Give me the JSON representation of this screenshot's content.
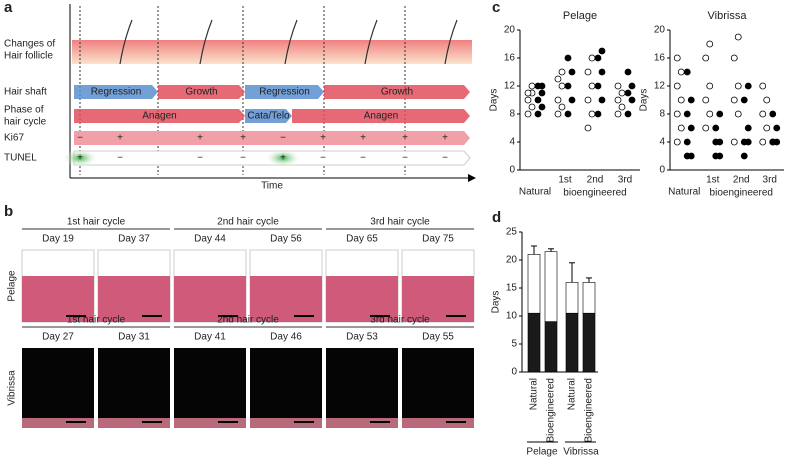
{
  "panels": {
    "a": {
      "letter": "a",
      "rows": [
        {
          "lines": [
            "Changes of",
            "Hair follicle"
          ]
        },
        {
          "lines": [
            "Hair shaft"
          ]
        },
        {
          "lines": [
            "Phase of",
            "hair cycle"
          ]
        },
        {
          "lines": [
            "Ki67"
          ]
        },
        {
          "lines": [
            "TUNEL"
          ]
        }
      ],
      "shaft": [
        {
          "text": "Regression",
          "color": "#5b8fd0"
        },
        {
          "text": "Growth",
          "color": "#e0505e"
        },
        {
          "text": "Regression",
          "color": "#5b8fd0"
        },
        {
          "text": "Growth",
          "color": "#e0505e"
        }
      ],
      "phase": [
        {
          "text": "Anagen",
          "color": "#e0505e"
        },
        {
          "text": "Cata/Telo",
          "color": "#5b8fd0"
        },
        {
          "text": "Anagen",
          "color": "#e0505e"
        }
      ],
      "ki67": [
        "−",
        "+",
        "+",
        "+",
        "−",
        "+",
        "+",
        "+",
        "+"
      ],
      "tunel": [
        "+",
        "−",
        "−",
        "−",
        "+",
        "−",
        "−",
        "−",
        "−"
      ],
      "xlabel": "Time"
    },
    "b": {
      "letter": "b",
      "rows": [
        {
          "label": "Pelage",
          "cycles": [
            {
              "title": "1st hair cycle",
              "days": [
                "Day 19",
                "Day 37"
              ]
            },
            {
              "title": "2nd hair cycle",
              "days": [
                "Day 44",
                "Day 56"
              ]
            },
            {
              "title": "3rd hair cycle",
              "days": [
                "Day 65",
                "Day 75"
              ]
            }
          ]
        },
        {
          "label": "Vibrissa",
          "cycles": [
            {
              "title": "1st hair cycle",
              "days": [
                "Day 27",
                "Day 31"
              ]
            },
            {
              "title": "2nd hair cycle",
              "days": [
                "Day 41",
                "Day 46"
              ]
            },
            {
              "title": "3rd hair cycle",
              "days": [
                "Day 53",
                "Day 55"
              ]
            }
          ]
        }
      ]
    },
    "c": {
      "letter": "c",
      "group_label": "bioengineered"
    },
    "d": {
      "letter": "d",
      "groups": [
        "Pelage",
        "Vibrissa"
      ]
    }
  },
  "chart_data": [
    {
      "type": "strip",
      "title": "Pelage",
      "ylabel": "Days",
      "categories": [
        "Natural",
        "1st",
        "2nd",
        "3rd"
      ],
      "ylim": [
        0,
        20
      ],
      "yticks": [
        0,
        4,
        8,
        12,
        16,
        20
      ],
      "series": [
        {
          "color": "#ffffff",
          "values": [
            [
              8,
              9,
              10,
              11,
              11,
              12
            ],
            [
              8,
              9,
              10,
              12,
              13,
              14
            ],
            [
              6,
              8,
              10,
              12,
              14,
              16
            ],
            [
              8,
              9,
              10,
              11,
              12
            ]
          ]
        },
        {
          "color": "#000000",
          "values": [
            [
              8,
              9,
              10,
              11,
              12,
              12
            ],
            [
              8,
              10,
              12,
              14,
              16
            ],
            [
              8,
              10,
              12,
              14,
              16,
              17
            ],
            [
              8,
              10,
              11,
              12,
              14
            ]
          ]
        }
      ]
    },
    {
      "type": "strip",
      "title": "Vibrissa",
      "ylabel": "Days",
      "categories": [
        "Natural",
        "1st",
        "2nd",
        "3rd"
      ],
      "ylim": [
        0,
        20
      ],
      "yticks": [
        0,
        4,
        8,
        12,
        16,
        20
      ],
      "series": [
        {
          "color": "#ffffff",
          "values": [
            [
              4,
              6,
              8,
              10,
              12,
              14,
              16
            ],
            [
              6,
              8,
              10,
              12,
              16,
              18
            ],
            [
              4,
              8,
              10,
              12,
              16,
              19
            ],
            [
              4,
              6,
              8,
              10,
              12
            ]
          ]
        },
        {
          "color": "#000000",
          "values": [
            [
              2,
              2,
              4,
              6,
              8,
              10,
              14
            ],
            [
              2,
              2,
              4,
              4,
              6,
              8
            ],
            [
              2,
              4,
              4,
              6,
              10,
              12
            ],
            [
              4,
              4,
              4,
              6,
              8
            ]
          ]
        }
      ]
    },
    {
      "type": "stacked",
      "ylabel": "Days",
      "categories": [
        "Natural",
        "Bioengineered",
        "Natural",
        "Bioengineered"
      ],
      "ylim": [
        0,
        25
      ],
      "yticks": [
        0,
        5,
        10,
        15,
        20,
        25
      ],
      "series": [
        {
          "color": "#1a1a1a",
          "values": [
            10.5,
            9,
            10.5,
            10.5
          ]
        },
        {
          "color": "#ffffff",
          "values": [
            10.5,
            12.5,
            5.5,
            5.5
          ],
          "errors": [
            1.5,
            0.5,
            3.5,
            0.8
          ]
        }
      ]
    }
  ]
}
